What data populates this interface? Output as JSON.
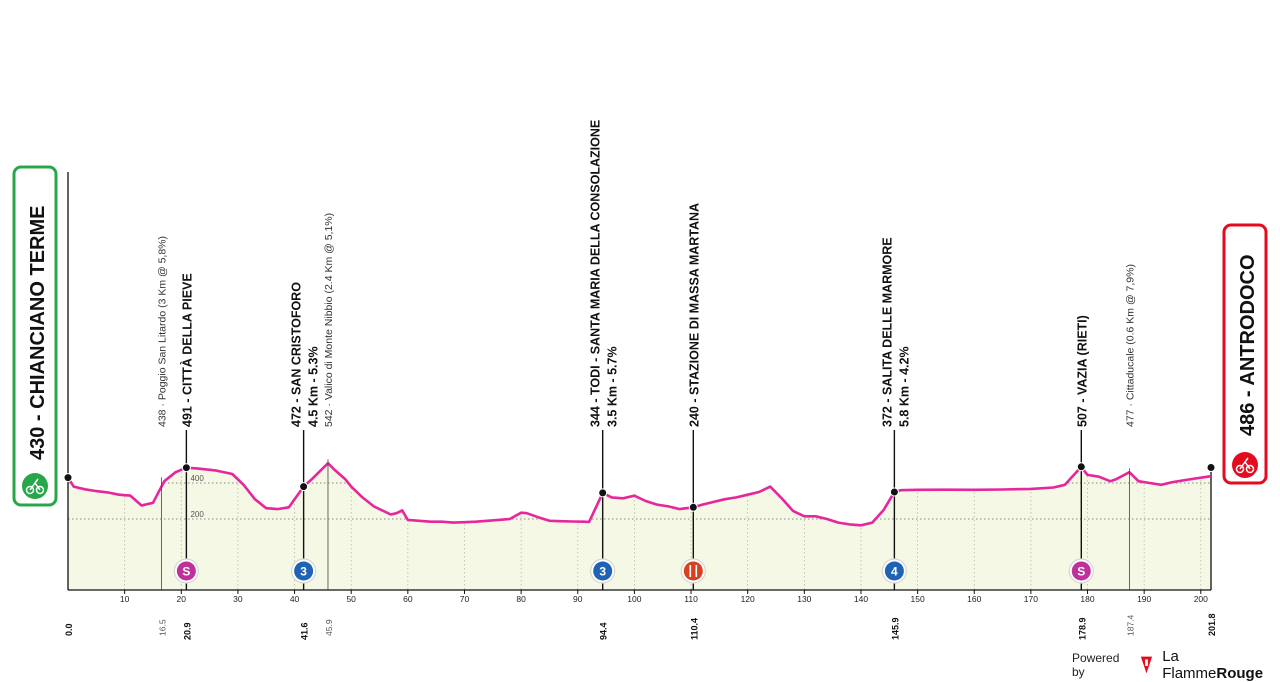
{
  "chart_data": {
    "type": "area",
    "title": "",
    "xlabel": "",
    "ylabel": "",
    "xlim": [
      0,
      201.8
    ],
    "ylim": [
      0,
      700
    ],
    "x_ticks": [
      "10",
      "20",
      "30",
      "40",
      "50",
      "60",
      "70",
      "80",
      "90",
      "100",
      "110",
      "120",
      "130",
      "140",
      "150",
      "160",
      "170",
      "180",
      "190",
      "200"
    ],
    "y_ticks": [
      "200",
      "400"
    ],
    "grid": true,
    "start": {
      "label": "430 - CHIANCIANO TERME",
      "km": "0.0",
      "elevation": 430
    },
    "finish": {
      "label": "486 - ANTRODOCO",
      "km": "201.8",
      "elevation": 486
    },
    "x": [
      0,
      1,
      3,
      5,
      7,
      9,
      11,
      13,
      15,
      17,
      19,
      20.9,
      23,
      26,
      29,
      31,
      33,
      35,
      37,
      39,
      41.6,
      43,
      45.9,
      47,
      49,
      50,
      52,
      54,
      56,
      57,
      58,
      59,
      60,
      62,
      64,
      66,
      68,
      70,
      72,
      74,
      76,
      78,
      80,
      81,
      83,
      85,
      87,
      89,
      91,
      92,
      94.4,
      96,
      98,
      100,
      102,
      104,
      106,
      108,
      110.4,
      112,
      114,
      116,
      118,
      120,
      122,
      124,
      126,
      128,
      130,
      132,
      134,
      136,
      138,
      140,
      142,
      144,
      145.9,
      147,
      150,
      155,
      160,
      165,
      170,
      174,
      176,
      178.9,
      180,
      182,
      184,
      185,
      187.4,
      189,
      191,
      193,
      195,
      198,
      201.8
    ],
    "series": [
      {
        "values": [
          430,
          380,
          365,
          355,
          348,
          335,
          330,
          275,
          290,
          410,
          460,
          485,
          480,
          470,
          450,
          390,
          310,
          260,
          255,
          265,
          380,
          420,
          510,
          475,
          420,
          380,
          320,
          270,
          240,
          225,
          232,
          248,
          195,
          190,
          185,
          185,
          180,
          182,
          185,
          190,
          195,
          200,
          235,
          232,
          210,
          190,
          188,
          186,
          185,
          184,
          345,
          320,
          315,
          330,
          300,
          280,
          270,
          255,
          265,
          280,
          295,
          310,
          320,
          335,
          350,
          380,
          315,
          245,
          215,
          215,
          200,
          180,
          170,
          165,
          180,
          250,
          350,
          360,
          362,
          363,
          362,
          364,
          367,
          375,
          390,
          490,
          445,
          435,
          410,
          420,
          460,
          410,
          400,
          390,
          405,
          420,
          438
        ]
      }
    ],
    "climbs": [
      {
        "label": "438 · Poggio San Litardo (3 Km @ 5,8%)",
        "km": "16.5",
        "elevation": 410
      },
      {
        "label": "542 · Valico di Monte Nibbio (2.4 Km @ 5,1%)",
        "km": "45.9",
        "elevation": 510
      },
      {
        "label": "477 · Cittaducale (0.6 Km @ 7,9%)",
        "km": "187.4",
        "elevation": 460
      }
    ],
    "waypoints": [
      {
        "label": "491 - CITTÀ DELLA PIEVE",
        "sub": "",
        "km": "20.9",
        "elevation": 485,
        "badge": "S",
        "badge_color": "#c0309a",
        "icon": "sprint-badge-icon"
      },
      {
        "label": "472 - SAN CRISTOFORO",
        "sub": "4.5 Km - 5.3%",
        "km": "41.6",
        "elevation": 380,
        "badge": "3",
        "badge_color": "#1f63b5",
        "icon": "kom-category-3-icon"
      },
      {
        "label": "344 - TODI - SANTA MARIA DELLA CONSOLAZIONE",
        "sub": "3.5 Km - 5.7%",
        "km": "94.4",
        "elevation": 345,
        "badge": "3",
        "badge_color": "#1f63b5",
        "icon": "kom-category-3-icon"
      },
      {
        "label": "240 - STAZIONE DI MASSA MARTANA",
        "sub": "",
        "km": "110.4",
        "elevation": 265,
        "badge": "",
        "badge_color": "#d9401f",
        "icon": "feed-zone-icon"
      },
      {
        "label": "372 - SALITA DELLE MARMORE",
        "sub": "5.8 Km - 4.2%",
        "km": "145.9",
        "elevation": 350,
        "badge": "4",
        "badge_color": "#1f63b5",
        "icon": "kom-category-4-icon"
      },
      {
        "label": "507 - VAZIA (RIETI)",
        "sub": "",
        "km": "178.9",
        "elevation": 490,
        "badge": "S",
        "badge_color": "#c0309a",
        "icon": "sprint-badge-icon"
      }
    ],
    "colors": {
      "profile_line": "#e6269b",
      "profile_fill": "#f6f8e6",
      "start": "#27a74a",
      "finish": "#e30b1d"
    }
  },
  "brand": {
    "powered": "Powered by",
    "name_a": "La Flamme",
    "name_b": "Rouge"
  }
}
